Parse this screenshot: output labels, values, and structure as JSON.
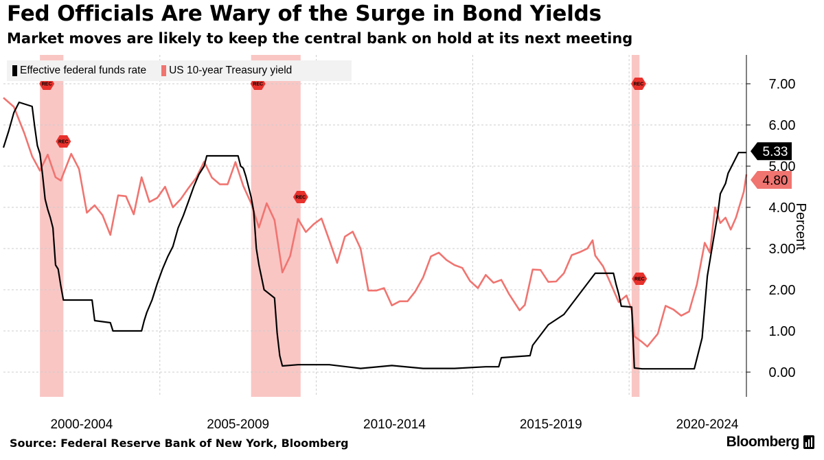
{
  "header": {
    "title": "Fed Officials Are Wary of the Surge in Bond Yields",
    "subtitle": "Market moves are likely to keep the central bank on hold at its next meeting"
  },
  "footer": {
    "source": "Source: Federal Reserve Bank of New York, Bloomberg",
    "brand": "Bloomberg"
  },
  "colors": {
    "fed_funds": "#000000",
    "treasury": "#f07470",
    "recession_band": "#f9c6c4",
    "rec_marker": "#e8312c",
    "grid": "#cccccc"
  },
  "chart_data": {
    "type": "line",
    "title": "Fed Officials Are Wary of the Surge in Bond Yields",
    "subtitle": "Market moves are likely to keep the central bank on hold at its next meeting",
    "xlabel": "",
    "ylabel": "Percent",
    "xlim": [
      "2000-01",
      "2023-10"
    ],
    "ylim": [
      -0.6,
      7.7
    ],
    "y_ticks": [
      0,
      1,
      2,
      3,
      4,
      5,
      6,
      7
    ],
    "y_tick_labels": [
      "0.00",
      "1.00",
      "2.00",
      "3.00",
      "4.00",
      "5.00",
      "6.00",
      "7.00"
    ],
    "x_tick_labels": [
      "2000-2004",
      "2005-2009",
      "2010-2014",
      "2015-2019",
      "2020-2024"
    ],
    "x_label_years": [
      2002.5,
      2007.5,
      2012.5,
      2017.5,
      2022.5
    ],
    "x_gridline_years": [
      2005,
      2010,
      2015,
      2020
    ],
    "grid": true,
    "legend": "top-left",
    "legend_entries": [
      "Effective federal funds rate",
      "US 10-year Treasury yield"
    ],
    "recessions": [
      {
        "start": "2001-03",
        "end": "2001-11",
        "label": "REC"
      },
      {
        "start": "2007-12",
        "end": "2009-06",
        "label": "REC"
      },
      {
        "start": "2020-02",
        "end": "2020-04",
        "label": "REC"
      }
    ],
    "series": [
      {
        "name": "Effective federal funds rate",
        "color": "#000000",
        "last_value_label": "5.33",
        "points": [
          [
            "2000-01",
            5.45
          ],
          [
            "2000-03",
            5.85
          ],
          [
            "2000-05",
            6.3
          ],
          [
            "2000-07",
            6.55
          ],
          [
            "2000-12",
            6.45
          ],
          [
            "2001-01",
            5.95
          ],
          [
            "2001-02",
            5.5
          ],
          [
            "2001-03",
            5.3
          ],
          [
            "2001-04",
            4.8
          ],
          [
            "2001-05",
            4.2
          ],
          [
            "2001-06",
            3.95
          ],
          [
            "2001-07",
            3.75
          ],
          [
            "2001-08",
            3.5
          ],
          [
            "2001-09",
            2.6
          ],
          [
            "2001-10",
            2.5
          ],
          [
            "2001-11",
            2.1
          ],
          [
            "2001-12",
            1.75
          ],
          [
            "2002-06",
            1.75
          ],
          [
            "2002-11",
            1.75
          ],
          [
            "2002-12",
            1.25
          ],
          [
            "2003-06",
            1.2
          ],
          [
            "2003-07",
            1.0
          ],
          [
            "2004-06",
            1.0
          ],
          [
            "2004-07",
            1.25
          ],
          [
            "2004-08",
            1.45
          ],
          [
            "2004-10",
            1.75
          ],
          [
            "2004-12",
            2.15
          ],
          [
            "2005-02",
            2.5
          ],
          [
            "2005-04",
            2.8
          ],
          [
            "2005-06",
            3.05
          ],
          [
            "2005-08",
            3.5
          ],
          [
            "2005-10",
            3.8
          ],
          [
            "2005-12",
            4.15
          ],
          [
            "2006-02",
            4.5
          ],
          [
            "2006-04",
            4.8
          ],
          [
            "2006-06",
            5.0
          ],
          [
            "2006-07",
            5.25
          ],
          [
            "2007-07",
            5.25
          ],
          [
            "2007-08",
            5.0
          ],
          [
            "2007-09",
            4.95
          ],
          [
            "2007-10",
            4.75
          ],
          [
            "2007-12",
            4.25
          ],
          [
            "2008-01",
            3.9
          ],
          [
            "2008-02",
            3.0
          ],
          [
            "2008-03",
            2.6
          ],
          [
            "2008-04",
            2.3
          ],
          [
            "2008-05",
            2.0
          ],
          [
            "2008-09",
            1.8
          ],
          [
            "2008-10",
            0.95
          ],
          [
            "2008-11",
            0.4
          ],
          [
            "2008-12",
            0.15
          ],
          [
            "2009-06",
            0.18
          ],
          [
            "2010-06",
            0.18
          ],
          [
            "2011-06",
            0.09
          ],
          [
            "2012-06",
            0.16
          ],
          [
            "2013-06",
            0.09
          ],
          [
            "2014-06",
            0.09
          ],
          [
            "2015-06",
            0.13
          ],
          [
            "2015-11",
            0.13
          ],
          [
            "2015-12",
            0.35
          ],
          [
            "2016-11",
            0.4
          ],
          [
            "2016-12",
            0.65
          ],
          [
            "2017-03",
            0.9
          ],
          [
            "2017-06",
            1.15
          ],
          [
            "2017-12",
            1.4
          ],
          [
            "2018-03",
            1.65
          ],
          [
            "2018-06",
            1.9
          ],
          [
            "2018-09",
            2.15
          ],
          [
            "2018-12",
            2.4
          ],
          [
            "2019-07",
            2.4
          ],
          [
            "2019-08",
            2.13
          ],
          [
            "2019-09",
            1.9
          ],
          [
            "2019-10",
            1.6
          ],
          [
            "2020-02",
            1.58
          ],
          [
            "2020-03",
            0.1
          ],
          [
            "2020-06",
            0.08
          ],
          [
            "2021-06",
            0.08
          ],
          [
            "2022-02",
            0.08
          ],
          [
            "2022-03",
            0.33
          ],
          [
            "2022-05",
            0.83
          ],
          [
            "2022-06",
            1.58
          ],
          [
            "2022-07",
            2.33
          ],
          [
            "2022-09",
            3.08
          ],
          [
            "2022-11",
            3.83
          ],
          [
            "2022-12",
            4.33
          ],
          [
            "2023-02",
            4.58
          ],
          [
            "2023-03",
            4.83
          ],
          [
            "2023-05",
            5.08
          ],
          [
            "2023-07",
            5.33
          ],
          [
            "2023-10",
            5.33
          ]
        ]
      },
      {
        "name": "US 10-year Treasury yield",
        "color": "#f07470",
        "last_value_label": "4.80",
        "points": [
          [
            "2000-01",
            6.66
          ],
          [
            "2000-05",
            6.44
          ],
          [
            "2000-09",
            5.8
          ],
          [
            "2000-12",
            5.24
          ],
          [
            "2001-03",
            4.89
          ],
          [
            "2001-06",
            5.28
          ],
          [
            "2001-09",
            4.73
          ],
          [
            "2001-11",
            4.65
          ],
          [
            "2002-03",
            5.3
          ],
          [
            "2002-06",
            4.93
          ],
          [
            "2002-09",
            3.87
          ],
          [
            "2002-12",
            4.05
          ],
          [
            "2003-03",
            3.81
          ],
          [
            "2003-06",
            3.33
          ],
          [
            "2003-09",
            4.29
          ],
          [
            "2003-12",
            4.27
          ],
          [
            "2004-03",
            3.83
          ],
          [
            "2004-06",
            4.73
          ],
          [
            "2004-09",
            4.13
          ],
          [
            "2004-12",
            4.23
          ],
          [
            "2005-03",
            4.5
          ],
          [
            "2005-06",
            4.0
          ],
          [
            "2005-09",
            4.2
          ],
          [
            "2005-12",
            4.47
          ],
          [
            "2006-03",
            4.72
          ],
          [
            "2006-06",
            5.11
          ],
          [
            "2006-09",
            4.72
          ],
          [
            "2006-12",
            4.56
          ],
          [
            "2007-03",
            4.56
          ],
          [
            "2007-06",
            5.1
          ],
          [
            "2007-09",
            4.52
          ],
          [
            "2007-12",
            4.1
          ],
          [
            "2008-03",
            3.51
          ],
          [
            "2008-06",
            4.1
          ],
          [
            "2008-09",
            3.69
          ],
          [
            "2008-12",
            2.42
          ],
          [
            "2009-03",
            2.82
          ],
          [
            "2009-06",
            3.72
          ],
          [
            "2009-09",
            3.4
          ],
          [
            "2009-12",
            3.59
          ],
          [
            "2010-03",
            3.73
          ],
          [
            "2010-06",
            3.2
          ],
          [
            "2010-09",
            2.65
          ],
          [
            "2010-12",
            3.29
          ],
          [
            "2011-03",
            3.41
          ],
          [
            "2011-06",
            3.0
          ],
          [
            "2011-09",
            1.98
          ],
          [
            "2011-12",
            1.98
          ],
          [
            "2012-03",
            2.04
          ],
          [
            "2012-06",
            1.62
          ],
          [
            "2012-09",
            1.72
          ],
          [
            "2012-12",
            1.72
          ],
          [
            "2013-03",
            1.96
          ],
          [
            "2013-06",
            2.3
          ],
          [
            "2013-09",
            2.81
          ],
          [
            "2013-12",
            2.9
          ],
          [
            "2014-03",
            2.72
          ],
          [
            "2014-06",
            2.6
          ],
          [
            "2014-09",
            2.53
          ],
          [
            "2014-12",
            2.21
          ],
          [
            "2015-03",
            2.04
          ],
          [
            "2015-06",
            2.36
          ],
          [
            "2015-09",
            2.17
          ],
          [
            "2015-12",
            2.24
          ],
          [
            "2016-03",
            1.89
          ],
          [
            "2016-07",
            1.5
          ],
          [
            "2016-09",
            1.63
          ],
          [
            "2016-12",
            2.49
          ],
          [
            "2017-03",
            2.48
          ],
          [
            "2017-06",
            2.19
          ],
          [
            "2017-09",
            2.2
          ],
          [
            "2017-12",
            2.4
          ],
          [
            "2018-03",
            2.84
          ],
          [
            "2018-06",
            2.91
          ],
          [
            "2018-09",
            3.0
          ],
          [
            "2018-11",
            3.2
          ],
          [
            "2018-12",
            2.83
          ],
          [
            "2019-03",
            2.57
          ],
          [
            "2019-06",
            2.14
          ],
          [
            "2019-09",
            1.7
          ],
          [
            "2019-12",
            1.86
          ],
          [
            "2020-02",
            1.5
          ],
          [
            "2020-03",
            0.87
          ],
          [
            "2020-06",
            0.73
          ],
          [
            "2020-08",
            0.62
          ],
          [
            "2020-12",
            0.93
          ],
          [
            "2021-03",
            1.61
          ],
          [
            "2021-06",
            1.52
          ],
          [
            "2021-09",
            1.37
          ],
          [
            "2021-12",
            1.47
          ],
          [
            "2022-03",
            2.13
          ],
          [
            "2022-06",
            3.14
          ],
          [
            "2022-08",
            2.9
          ],
          [
            "2022-10",
            4.0
          ],
          [
            "2022-12",
            3.62
          ],
          [
            "2023-02",
            3.75
          ],
          [
            "2023-04",
            3.46
          ],
          [
            "2023-06",
            3.75
          ],
          [
            "2023-08",
            4.17
          ],
          [
            "2023-09",
            4.38
          ],
          [
            "2023-10",
            4.8
          ]
        ]
      }
    ]
  }
}
